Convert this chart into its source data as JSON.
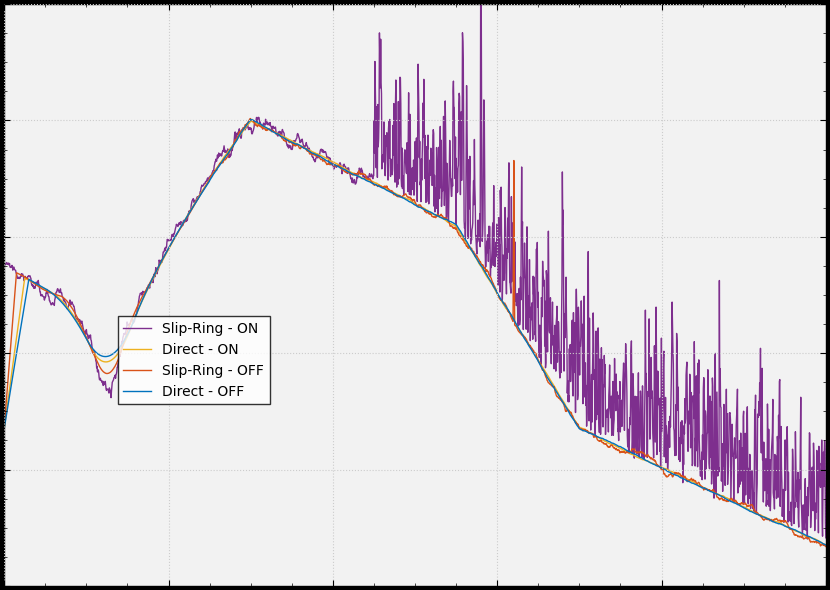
{
  "legend_labels": [
    "Direct - OFF",
    "Slip-Ring - OFF",
    "Direct - ON",
    "Slip-Ring - ON"
  ],
  "colors": [
    "#0072BD",
    "#D95319",
    "#EDB120",
    "#7E2F8E"
  ],
  "linewidths": [
    1.0,
    1.0,
    1.0,
    1.0
  ],
  "plot_bg": "#f0f0f0",
  "fig_bg": "#000000",
  "figsize": [
    8.3,
    5.9
  ],
  "dpi": 100,
  "legend_fontsize": 10,
  "tick_fontsize": 9
}
